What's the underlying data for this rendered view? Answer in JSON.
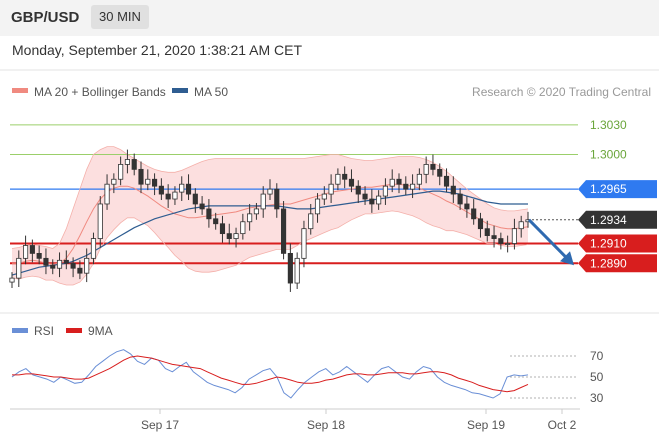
{
  "header": {
    "symbol": "GBP/USD",
    "timeframe": "30 MIN"
  },
  "datetime": "Monday, September 21, 2020 1:38:21 AM CET",
  "colors": {
    "ma20": "#f08a80",
    "ma50": "#2f5d91",
    "support": "#d81e1e",
    "resistance": "#2f7af0",
    "current": "#333333",
    "target": "#9bcf6a",
    "rsi": "#6a8fd6",
    "ma9": "#d81e1e",
    "band": "#fbd9d9"
  },
  "chart_data": [
    {
      "type": "line",
      "legend": [
        {
          "name": "MA 20 + Bollinger Bands",
          "color": "#f08a80"
        },
        {
          "name": "MA 50",
          "color": "#2f5d91"
        }
      ],
      "credit": "Research © 2020 Trading Central",
      "ylim": [
        1.2865,
        1.304
      ],
      "levels": [
        {
          "value": 1.303,
          "label": "1.3030",
          "kind": "target"
        },
        {
          "value": 1.3,
          "label": "1.3000",
          "kind": "target"
        },
        {
          "value": 1.2965,
          "label": "1.2965",
          "kind": "resistance"
        },
        {
          "value": 1.2934,
          "label": "1.2934",
          "kind": "current"
        },
        {
          "value": 1.291,
          "label": "1.2910",
          "kind": "support"
        },
        {
          "value": 1.289,
          "label": "1.2890",
          "kind": "support"
        }
      ],
      "price": [
        1.2875,
        1.2895,
        1.2908,
        1.29,
        1.2895,
        1.2888,
        1.2885,
        1.2893,
        1.289,
        1.2885,
        1.288,
        1.2895,
        1.2915,
        1.295,
        1.297,
        1.2975,
        1.299,
        1.2995,
        1.2985,
        1.297,
        1.2975,
        1.2968,
        1.296,
        1.2955,
        1.2962,
        1.297,
        1.296,
        1.295,
        1.2945,
        1.2935,
        1.293,
        1.292,
        1.2915,
        1.292,
        1.2932,
        1.294,
        1.2945,
        1.296,
        1.2965,
        1.2945,
        1.29,
        1.287,
        1.2895,
        1.2925,
        1.294,
        1.2955,
        1.296,
        1.297,
        1.298,
        1.2975,
        1.2968,
        1.296,
        1.2955,
        1.295,
        1.2958,
        1.2968,
        1.2975,
        1.297,
        1.2965,
        1.297,
        1.298,
        1.299,
        1.2985,
        1.2978,
        1.2968,
        1.296,
        1.295,
        1.2945,
        1.2935,
        1.2925,
        1.2918,
        1.2915,
        1.291,
        1.291,
        1.2925,
        1.2932,
        1.2934
      ],
      "ma20": [
        1.289,
        1.289,
        1.2892,
        1.2893,
        1.2892,
        1.289,
        1.2889,
        1.289,
        1.2895,
        1.2905,
        1.2918,
        1.2932,
        1.2945,
        1.2955,
        1.2962,
        1.2966,
        1.2968,
        1.2968,
        1.2966,
        1.2962,
        1.2958,
        1.2953,
        1.2948,
        1.2944,
        1.294,
        1.2938,
        1.2936,
        1.2936,
        1.2937,
        1.2938,
        1.2939,
        1.294,
        1.2941,
        1.2942,
        1.2944,
        1.2946,
        1.2947,
        1.2948,
        1.2949,
        1.295,
        1.295,
        1.295,
        1.2952,
        1.2954,
        1.2956,
        1.2958,
        1.296,
        1.2962,
        1.2963,
        1.2964,
        1.2965,
        1.2966,
        1.2967,
        1.2967,
        1.2968,
        1.2969,
        1.297,
        1.297,
        1.2969,
        1.2968,
        1.2966,
        1.2963,
        1.296,
        1.2957,
        1.2953,
        1.295,
        1.2946,
        1.2942,
        1.2938,
        1.2934,
        1.293,
        1.2928,
        1.2926,
        1.2925,
        1.2925,
        1.2926,
        1.2927
      ],
      "bb_upper": [
        1.2905,
        1.2906,
        1.2908,
        1.2909,
        1.2908,
        1.2907,
        1.2905,
        1.291,
        1.2925,
        1.2945,
        1.2965,
        1.2985,
        1.3,
        1.3005,
        1.3008,
        1.3008,
        1.3005,
        1.3,
        1.2996,
        1.2992,
        1.2988,
        1.2985,
        1.2983,
        1.2982,
        1.2982,
        1.2984,
        1.2987,
        1.299,
        1.2993,
        1.2995,
        1.2996,
        1.2996,
        1.2996,
        1.2996,
        1.2996,
        1.2996,
        1.2996,
        1.2996,
        1.2996,
        1.2996,
        1.2996,
        1.2996,
        1.2996,
        1.2996,
        1.2997,
        1.2998,
        1.2999,
        1.3,
        1.3,
        1.2998,
        1.2996,
        1.2995,
        1.2994,
        1.2994,
        1.2995,
        1.2996,
        1.2997,
        1.2998,
        1.2998,
        1.2998,
        1.2997,
        1.2995,
        1.2992,
        1.2988,
        1.2983,
        1.2977,
        1.2971,
        1.2965,
        1.296,
        1.2955,
        1.295,
        1.2946,
        1.2944,
        1.2943,
        1.2943,
        1.2944,
        1.2945
      ],
      "bb_lower": [
        1.2875,
        1.2874,
        1.2876,
        1.2877,
        1.2876,
        1.2873,
        1.2873,
        1.287,
        1.2868,
        1.2868,
        1.2871,
        1.2879,
        1.289,
        1.2905,
        1.2916,
        1.2924,
        1.2931,
        1.2936,
        1.2936,
        1.2932,
        1.2928,
        1.2921,
        1.2913,
        1.2906,
        1.2898,
        1.2892,
        1.2885,
        1.2882,
        1.2881,
        1.2881,
        1.2882,
        1.2884,
        1.2886,
        1.2888,
        1.2892,
        1.2896,
        1.2898,
        1.29,
        1.2902,
        1.2904,
        1.2904,
        1.2904,
        1.2908,
        1.2912,
        1.2915,
        1.2918,
        1.2921,
        1.2924,
        1.2926,
        1.293,
        1.2934,
        1.2937,
        1.294,
        1.294,
        1.2941,
        1.2942,
        1.2943,
        1.2942,
        1.294,
        1.2938,
        1.2935,
        1.2931,
        1.2928,
        1.2926,
        1.2923,
        1.2923,
        1.2921,
        1.2919,
        1.2916,
        1.2913,
        1.291,
        1.291,
        1.2908,
        1.2907,
        1.2907,
        1.2908,
        1.2909
      ],
      "ma50": [
        1.2878,
        1.288,
        1.2882,
        1.2884,
        1.2886,
        1.2887,
        1.2888,
        1.2889,
        1.289,
        1.2892,
        1.2895,
        1.2898,
        1.2902,
        1.2906,
        1.291,
        1.2914,
        1.2918,
        1.2922,
        1.2926,
        1.2929,
        1.2932,
        1.2935,
        1.2937,
        1.2939,
        1.2941,
        1.2943,
        1.2945,
        1.2946,
        1.2947,
        1.2948,
        1.2948,
        1.2948,
        1.2948,
        1.2948,
        1.2948,
        1.2948,
        1.2948,
        1.2948,
        1.2948,
        1.2948,
        1.2947,
        1.2946,
        1.2945,
        1.2945,
        1.2945,
        1.2946,
        1.2947,
        1.2948,
        1.2949,
        1.295,
        1.2951,
        1.2952,
        1.2953,
        1.2954,
        1.2955,
        1.2956,
        1.2957,
        1.2958,
        1.2959,
        1.296,
        1.2961,
        1.2962,
        1.2963,
        1.2963,
        1.2962,
        1.2961,
        1.296,
        1.2958,
        1.2956,
        1.2954,
        1.2952,
        1.2951,
        1.295,
        1.295,
        1.295,
        1.295,
        1.295
      ],
      "forecast": {
        "from": 1.2934,
        "to": 1.289
      },
      "x_ticks": [
        {
          "index": 17,
          "label": "Sep 17"
        },
        {
          "index": 36,
          "label": "Sep 18"
        },
        {
          "index": 53,
          "label": "Sep 19"
        },
        {
          "index": 63,
          "label": "Oct 2"
        }
      ]
    },
    {
      "type": "line",
      "legend": [
        {
          "name": "RSI",
          "color": "#6a8fd6"
        },
        {
          "name": "9MA",
          "color": "#d81e1e"
        }
      ],
      "ylim": [
        20,
        80
      ],
      "y_ticks": [
        {
          "value": 70,
          "label": "70"
        },
        {
          "value": 50,
          "label": "50"
        },
        {
          "value": 30,
          "label": "30"
        }
      ],
      "rsi": [
        50,
        55,
        58,
        52,
        50,
        48,
        45,
        50,
        47,
        44,
        45,
        52,
        60,
        65,
        70,
        74,
        76,
        72,
        65,
        62,
        68,
        66,
        58,
        55,
        60,
        64,
        55,
        50,
        45,
        42,
        40,
        38,
        35,
        40,
        48,
        52,
        56,
        58,
        50,
        35,
        30,
        38,
        45,
        50,
        55,
        58,
        52,
        55,
        60,
        55,
        50,
        45,
        52,
        58,
        60,
        55,
        50,
        48,
        55,
        60,
        58,
        50,
        45,
        42,
        40,
        38,
        35,
        34,
        32,
        30,
        34,
        50,
        52,
        51,
        52
      ],
      "ma9": [
        52,
        52,
        53,
        53,
        52,
        51,
        50,
        50,
        49,
        48,
        48,
        49,
        52,
        55,
        58,
        62,
        66,
        69,
        70,
        69,
        68,
        66,
        64,
        62,
        61,
        60,
        59,
        58,
        55,
        52,
        49,
        47,
        45,
        43,
        43,
        44,
        46,
        48,
        50,
        49,
        47,
        45,
        44,
        44,
        45,
        47,
        48,
        50,
        52,
        53,
        53,
        52,
        52,
        53,
        54,
        54,
        54,
        53,
        53,
        54,
        55,
        55,
        54,
        52,
        49,
        47,
        45,
        42,
        40,
        38,
        37,
        36,
        37,
        40,
        43
      ]
    }
  ]
}
